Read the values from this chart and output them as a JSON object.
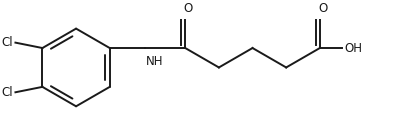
{
  "bg_color": "#ffffff",
  "line_color": "#1a1a1a",
  "line_width": 1.4,
  "font_size": 8.5,
  "font_family": "DejaVu Sans",
  "figsize": [
    4.14,
    1.38
  ],
  "dpi": 100,
  "atoms": {
    "Cl1_label": "Cl",
    "Cl2_label": "Cl",
    "O1_label": "O",
    "O2_label": "O",
    "NH_label": "NH",
    "OH_label": "OH"
  }
}
